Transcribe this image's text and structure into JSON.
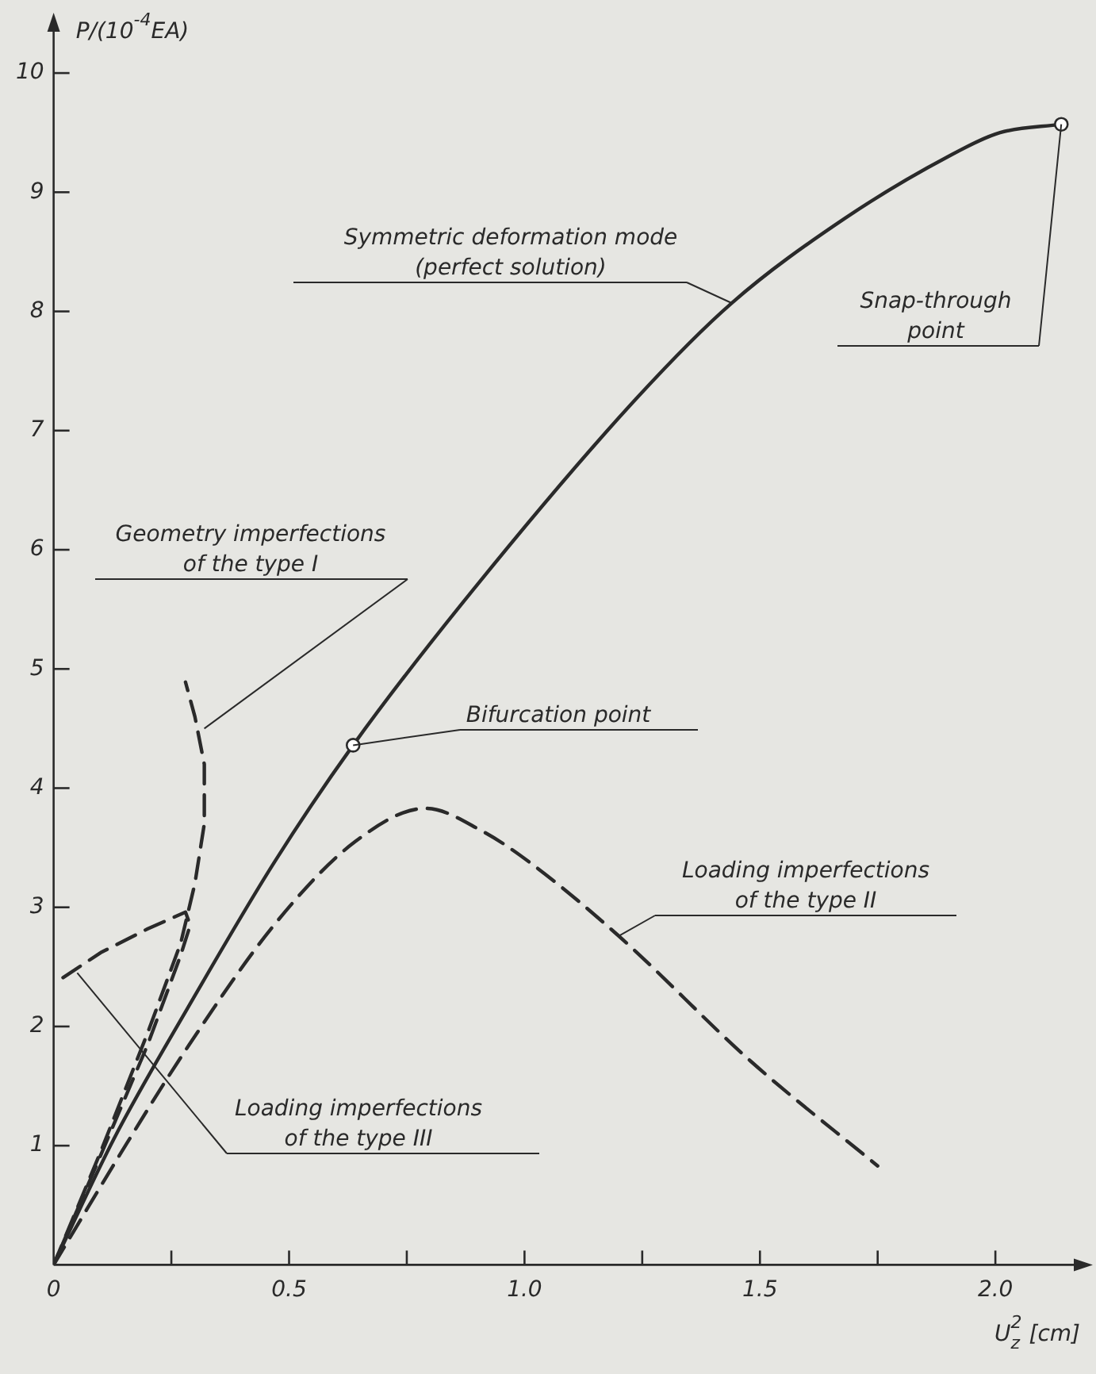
{
  "chart_data": {
    "type": "line",
    "xlabel": "U$_{z}$$^{2}$ [cm]",
    "ylabel": "P/(10$^{-4}$EA)",
    "xlim": [
      0,
      2.18
    ],
    "ylim": [
      0,
      10.4
    ],
    "xticks": [
      {
        "value": 0,
        "label": "0"
      },
      {
        "value": 0.25,
        "label": null
      },
      0.5,
      {
        "value": 0.75,
        "label": null
      },
      {
        "value": 1,
        "label": "1.0"
      },
      {
        "value": 1.25,
        "label": null
      },
      1.5,
      {
        "value": 1.75,
        "label": null
      },
      {
        "value": 2,
        "label": "2.0"
      }
    ],
    "yticks": [
      1,
      2,
      3,
      4,
      5,
      6,
      7,
      8,
      9,
      10
    ],
    "series": [
      {
        "color": "#2a2a2a",
        "line_style": "solid",
        "x": [
          0,
          0.127,
          0.284,
          0.469,
          0.636,
          0.89,
          1.24,
          1.44,
          1.68,
          1.9,
          2.01,
          2.14
        ],
        "values": [
          0,
          1.05,
          2.15,
          3.38,
          4.36,
          5.66,
          7.28,
          8.07,
          8.78,
          9.3,
          9.5,
          9.57
        ]
      },
      {
        "color": "#2a2a2a",
        "line_style": "dashed",
        "x": [
          0,
          0.14,
          0.28,
          0.47,
          0.64,
          0.79,
          0.91,
          1.01,
          1.2,
          1.48,
          1.75
        ],
        "values": [
          0,
          0.92,
          1.8,
          2.86,
          3.55,
          3.83,
          3.64,
          3.38,
          2.76,
          1.71,
          0.83
        ]
      },
      {
        "color": "#2a2a2a",
        "line_style": "dashed",
        "x": [
          0,
          0.1,
          0.2,
          0.27,
          0.3,
          0.32,
          0.32,
          0.3,
          0.28
        ],
        "values": [
          0,
          0.95,
          1.95,
          2.7,
          3.2,
          3.7,
          4.2,
          4.6,
          4.89
        ]
      },
      {
        "color": "#2a2a2a",
        "line_style": "dashed",
        "x": [
          0.02,
          0.1,
          0.2,
          0.28,
          0.29,
          0.27,
          0.2,
          0.1,
          0
        ],
        "values": [
          2.41,
          2.62,
          2.82,
          2.96,
          2.85,
          2.6,
          1.85,
          0.92,
          0
        ]
      },
      {
        "type": "scatter",
        "color": "#2a2a2a",
        "marker": "circle",
        "x": [
          0.636,
          2.14
        ],
        "values": [
          4.36,
          9.57
        ]
      }
    ],
    "annotations": [
      {
        "text": "Symmetric deformation mode\n(perfect solution)",
        "x": 1.44,
        "y": 8.07
      },
      {
        "text": "Snap-through\npoint",
        "x": 2.14,
        "y": 9.57
      },
      {
        "text": "Geometry imperfections\nof the type I",
        "x": 0.32,
        "y": 4.5
      },
      {
        "text": "Bifurcation point",
        "x": 0.636,
        "y": 4.36
      },
      {
        "text": "Loading imperfections\nof the type II",
        "x": 1.2,
        "y": 2.76
      },
      {
        "text": "Loading imperfections\nof the type III",
        "x": 0.05,
        "y": 2.45
      }
    ]
  }
}
